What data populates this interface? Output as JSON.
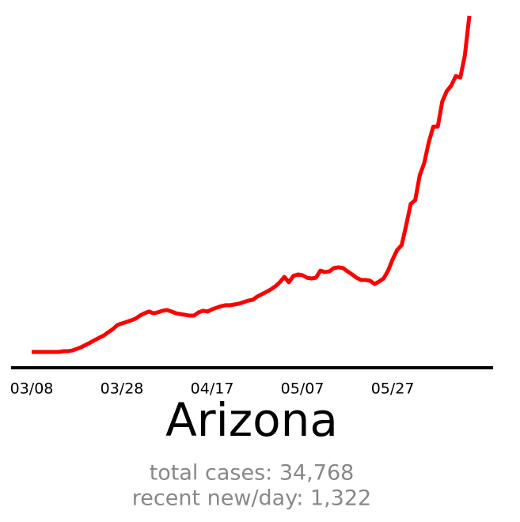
{
  "chart_data": {
    "type": "line",
    "title": "Arizona",
    "annotations": [
      "total cases: 34,768",
      "recent new/day: 1,322"
    ],
    "color": "#ff0000",
    "x": [
      "03/08",
      "03/09",
      "03/10",
      "03/11",
      "03/12",
      "03/13",
      "03/14",
      "03/15",
      "03/16",
      "03/17",
      "03/18",
      "03/19",
      "03/20",
      "03/21",
      "03/22",
      "03/23",
      "03/24",
      "03/25",
      "03/26",
      "03/27",
      "03/28",
      "03/29",
      "03/30",
      "03/31",
      "04/01",
      "04/02",
      "04/03",
      "04/04",
      "04/05",
      "04/06",
      "04/07",
      "04/08",
      "04/09",
      "04/10",
      "04/11",
      "04/12",
      "04/13",
      "04/14",
      "04/15",
      "04/16",
      "04/17",
      "04/18",
      "04/19",
      "04/20",
      "04/21",
      "04/22",
      "04/23",
      "04/24",
      "04/25",
      "04/26",
      "04/27",
      "04/28",
      "04/29",
      "04/30",
      "05/01",
      "05/02",
      "05/03",
      "05/04",
      "05/05",
      "05/06",
      "05/07",
      "05/08",
      "05/09",
      "05/10",
      "05/11",
      "05/12",
      "05/13",
      "05/14",
      "05/15",
      "05/16",
      "05/17",
      "05/18",
      "05/19",
      "05/20",
      "05/21",
      "05/22",
      "05/23",
      "05/24",
      "05/25",
      "05/26",
      "05/27",
      "05/28",
      "05/29",
      "05/30",
      "05/31",
      "06/01",
      "06/02",
      "06/03",
      "06/04",
      "06/05",
      "06/06",
      "06/07",
      "06/08",
      "06/09",
      "06/10",
      "06/11",
      "06/12",
      "06/13"
    ],
    "values": [
      0,
      0,
      0,
      0,
      0,
      0,
      0,
      3,
      3,
      6,
      12,
      19,
      28,
      37,
      47,
      56,
      65,
      78,
      90,
      106,
      112,
      118,
      124,
      131,
      143,
      152,
      159,
      152,
      156,
      162,
      165,
      159,
      152,
      149,
      146,
      143,
      143,
      156,
      162,
      159,
      168,
      174,
      180,
      184,
      184,
      187,
      190,
      196,
      202,
      205,
      218,
      227,
      236,
      246,
      258,
      274,
      295,
      274,
      299,
      305,
      302,
      292,
      289,
      292,
      320,
      314,
      317,
      330,
      333,
      330,
      317,
      305,
      292,
      283,
      283,
      280,
      267,
      277,
      289,
      320,
      364,
      401,
      420,
      498,
      582,
      597,
      694,
      743,
      824,
      886,
      886,
      985,
      1026,
      1048,
      1085,
      1079,
      1166,
      1322
    ],
    "xticks": [
      "03/08",
      "03/28",
      "04/17",
      "05/07",
      "05/27"
    ]
  }
}
